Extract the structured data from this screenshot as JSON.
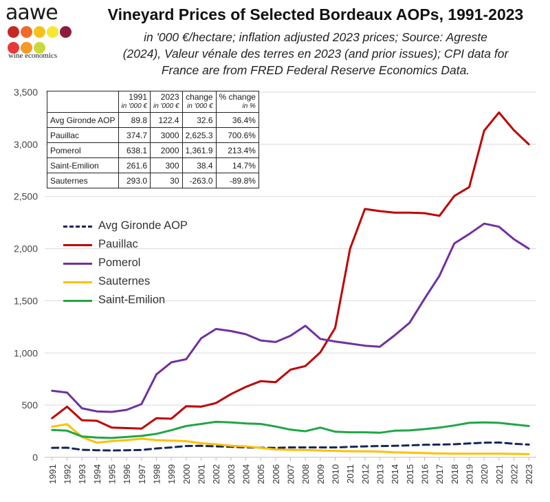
{
  "logo": {
    "name": "aawe",
    "tagline": "wine economics",
    "dot_colors": [
      "#c62828",
      "#ef6c2a",
      "#f5c21b",
      "#f7e733",
      "#8c1c3c",
      "#e63a3a",
      "#f59a23",
      "#c9d93a"
    ]
  },
  "chart_data": {
    "type": "line",
    "title": "Vineyard Prices of Selected Bordeaux AOPs, 1991-2023",
    "subtitle": [
      "in '000 €/hectare; inflation adjusted 2023 prices; Source: Agreste",
      "(2024), Valeur vénale des terres en 2023 (and prior issues); CPI data for",
      "France are from FRED Federal Reserve Economics Data."
    ],
    "xlabel": "",
    "ylabel": "",
    "ylim": [
      0,
      3500
    ],
    "yticks": [
      0,
      500,
      1000,
      1500,
      2000,
      2500,
      3000,
      3500
    ],
    "ytick_labels": [
      "0",
      "500",
      "1,000",
      "1,500",
      "2,000",
      "2,500",
      "3,000",
      "3,500"
    ],
    "x": [
      1991,
      1992,
      1993,
      1994,
      1995,
      1996,
      1997,
      1998,
      1999,
      2000,
      2001,
      2002,
      2003,
      2004,
      2005,
      2006,
      2007,
      2008,
      2009,
      2010,
      2011,
      2012,
      2013,
      2014,
      2015,
      2016,
      2017,
      2018,
      2019,
      2020,
      2021,
      2022,
      2023
    ],
    "grid": "horizontal",
    "legend_position": "left",
    "series": [
      {
        "name": "Avg Gironde AOP",
        "color": "#13265c",
        "dash": "dashed",
        "values": [
          90,
          92,
          72,
          68,
          65,
          68,
          70,
          85,
          95,
          108,
          110,
          105,
          100,
          95,
          92,
          90,
          95,
          95,
          95,
          95,
          100,
          105,
          108,
          110,
          115,
          120,
          122,
          125,
          133,
          140,
          142,
          130,
          122
        ]
      },
      {
        "name": "Pauillac",
        "color": "#c00000",
        "dash": "solid",
        "values": [
          375,
          485,
          355,
          350,
          285,
          280,
          275,
          375,
          370,
          490,
          485,
          520,
          605,
          675,
          730,
          720,
          840,
          875,
          1005,
          1240,
          2000,
          2380,
          2360,
          2345,
          2345,
          2340,
          2315,
          2505,
          2590,
          3130,
          3305,
          3135,
          3000
        ]
      },
      {
        "name": "Pomerol",
        "color": "#7030a0",
        "dash": "solid",
        "values": [
          638,
          620,
          470,
          440,
          435,
          455,
          510,
          795,
          910,
          940,
          1140,
          1230,
          1210,
          1180,
          1120,
          1105,
          1165,
          1260,
          1135,
          1110,
          1090,
          1070,
          1060,
          1170,
          1290,
          1520,
          1740,
          2050,
          2140,
          2240,
          2210,
          2090,
          2000
        ]
      },
      {
        "name": "Sauternes",
        "color": "#ffc000",
        "dash": "solid",
        "values": [
          293,
          318,
          195,
          140,
          155,
          165,
          178,
          165,
          160,
          155,
          135,
          125,
          110,
          105,
          90,
          75,
          72,
          70,
          65,
          62,
          58,
          58,
          55,
          48,
          45,
          40,
          37,
          35,
          35,
          35,
          35,
          33,
          30
        ]
      },
      {
        "name": "Saint-Emilion",
        "color": "#1fa645",
        "dash": "solid",
        "values": [
          262,
          255,
          200,
          190,
          185,
          195,
          205,
          225,
          260,
          300,
          320,
          340,
          335,
          325,
          320,
          295,
          265,
          250,
          285,
          245,
          240,
          240,
          235,
          255,
          258,
          270,
          285,
          305,
          330,
          335,
          330,
          315,
          300
        ]
      }
    ],
    "legend_order": [
      "Avg Gironde AOP",
      "Pauillac",
      "Pomerol",
      "Sauternes",
      "Saint-Emilion"
    ],
    "table": {
      "headers": [
        {
          "label": "",
          "unit": ""
        },
        {
          "label": "1991",
          "unit": "in '000 €"
        },
        {
          "label": "2023",
          "unit": "in '000 €"
        },
        {
          "label": "change",
          "unit": "in '000 €"
        },
        {
          "label": "% change",
          "unit": "in %"
        }
      ],
      "rows": [
        [
          "Avg Gironde AOP",
          "89.8",
          "122.4",
          "32.6",
          "36.4%"
        ],
        [
          "Pauillac",
          "374.7",
          "3000",
          "2,625.3",
          "700.6%"
        ],
        [
          "Pomerol",
          "638.1",
          "2000",
          "1,361.9",
          "213.4%"
        ],
        [
          "Saint-Emilion",
          "261.6",
          "300",
          "38.4",
          "14.7%"
        ],
        [
          "Sauternes",
          "293.0",
          "30",
          "-263.0",
          "-89.8%"
        ]
      ]
    }
  }
}
